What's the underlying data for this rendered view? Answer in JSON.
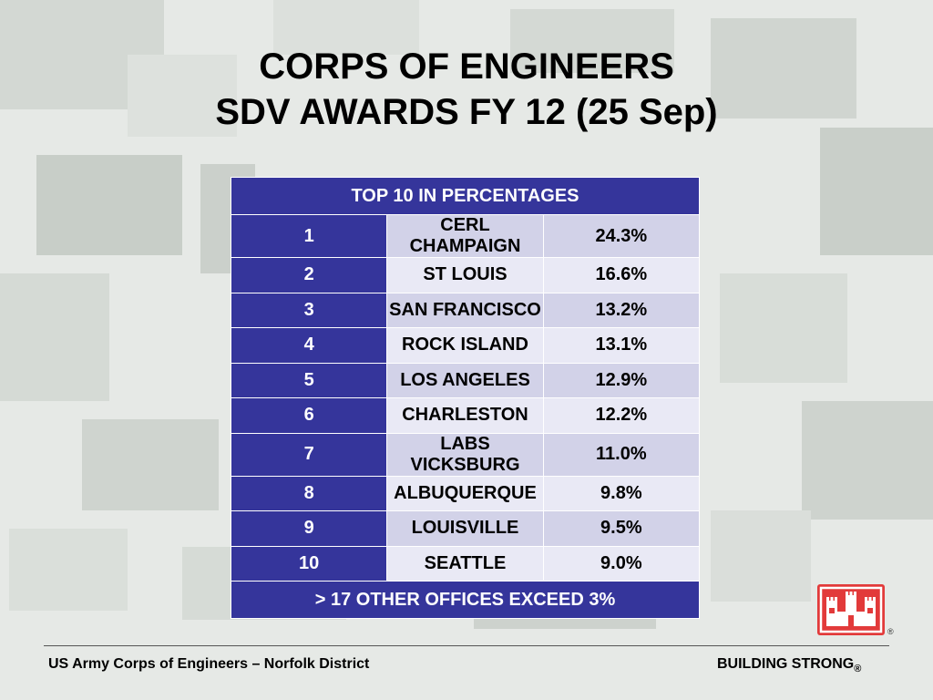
{
  "slide": {
    "title_line1": "CORPS OF ENGINEERS",
    "title_line2": "SDV AWARDS FY 12 (25 Sep)"
  },
  "table": {
    "header": "TOP 10 IN PERCENTAGES",
    "rows": [
      {
        "rank": "1",
        "office": "CERL CHAMPAIGN",
        "percent": "24.3%"
      },
      {
        "rank": "2",
        "office": "ST LOUIS",
        "percent": "16.6%"
      },
      {
        "rank": "3",
        "office": "SAN FRANCISCO",
        "percent": "13.2%"
      },
      {
        "rank": "4",
        "office": "ROCK ISLAND",
        "percent": "13.1%"
      },
      {
        "rank": "5",
        "office": "LOS ANGELES",
        "percent": "12.9%"
      },
      {
        "rank": "6",
        "office": "CHARLESTON",
        "percent": "12.2%"
      },
      {
        "rank": "7",
        "office": "LABS VICKSBURG",
        "percent": "11.0%"
      },
      {
        "rank": "8",
        "office": "ALBUQUERQUE",
        "percent": "9.8%"
      },
      {
        "rank": "9",
        "office": "LOUISVILLE",
        "percent": "9.5%"
      },
      {
        "rank": "10",
        "office": "SEATTLE",
        "percent": "9.0%"
      }
    ],
    "footer": "> 17 OTHER OFFICES EXCEED 3%"
  },
  "footer": {
    "left_text": "US Army Corps of Engineers – Norfolk District",
    "right_text": "BUILDING STRONG",
    "registered_mark": "®",
    "logo_registered_mark": "®"
  },
  "colors": {
    "table_header_blue": "#35359b",
    "row_light": "#e9e9f5",
    "row_shaded": "#d2d2e8",
    "logo_red": "#e23a3a"
  },
  "icons": {
    "logo": "castle-icon"
  }
}
